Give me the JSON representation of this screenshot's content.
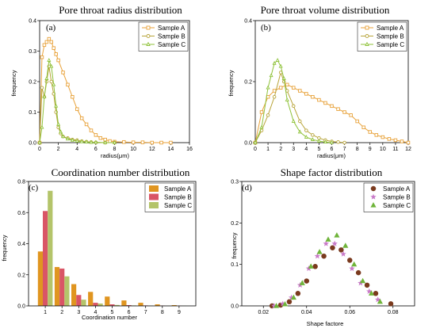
{
  "chart_data": [
    {
      "id": "a",
      "type": "line",
      "letter": "(a)",
      "title": "Pore throat radius distribution",
      "xlabel": "radius(μm)",
      "ylabel": "frequency",
      "xlim": [
        0,
        16
      ],
      "ylim": [
        0,
        0.4
      ],
      "xticks": [
        0,
        2,
        4,
        6,
        8,
        10,
        12,
        14,
        16
      ],
      "yticks": [
        0.0,
        0.1,
        0.2,
        0.3,
        0.4
      ],
      "legend": "top-right",
      "series": [
        {
          "name": "Sample A",
          "color": "#e8a23a",
          "marker": "square",
          "x": [
            0,
            0.25,
            0.5,
            0.75,
            1.0,
            1.25,
            1.5,
            1.75,
            2.0,
            2.5,
            3.0,
            3.5,
            4.0,
            4.5,
            5.0,
            5.5,
            6.0,
            6.5,
            7.0,
            7.5,
            8.0,
            9.0,
            10.0,
            11.0,
            12.0,
            13.0,
            14.0
          ],
          "y": [
            0.0,
            0.28,
            0.32,
            0.33,
            0.34,
            0.33,
            0.31,
            0.29,
            0.27,
            0.23,
            0.19,
            0.15,
            0.11,
            0.08,
            0.06,
            0.04,
            0.025,
            0.015,
            0.01,
            0.005,
            0.003,
            0.002,
            0.001,
            0.001,
            0.0,
            0.0,
            0.0
          ]
        },
        {
          "name": "Sample B",
          "color": "#b8a43a",
          "marker": "circle",
          "x": [
            0,
            0.25,
            0.5,
            0.75,
            1.0,
            1.25,
            1.5,
            1.75,
            2.0,
            2.25,
            2.5,
            3.0,
            3.5,
            4.0,
            4.5,
            5.0,
            5.5,
            6.0,
            7.0,
            8.0
          ],
          "y": [
            0.0,
            0.18,
            0.15,
            0.2,
            0.25,
            0.2,
            0.16,
            0.1,
            0.05,
            0.03,
            0.02,
            0.015,
            0.01,
            0.008,
            0.005,
            0.003,
            0.002,
            0.001,
            0.0,
            0.0
          ]
        },
        {
          "name": "Sample C",
          "color": "#8fc23a",
          "marker": "triangle",
          "x": [
            0,
            0.25,
            0.5,
            0.75,
            1.0,
            1.25,
            1.5,
            1.75,
            2.0,
            2.25,
            2.5,
            3.0,
            3.5,
            4.0,
            4.5,
            5.0,
            5.5,
            6.0,
            7.0,
            8.0
          ],
          "y": [
            0.0,
            0.05,
            0.15,
            0.21,
            0.27,
            0.25,
            0.19,
            0.12,
            0.06,
            0.035,
            0.02,
            0.012,
            0.008,
            0.005,
            0.003,
            0.002,
            0.001,
            0.001,
            0.0,
            0.0
          ]
        }
      ]
    },
    {
      "id": "b",
      "type": "line",
      "letter": "(b)",
      "title": "Pore throat volume distribution",
      "xlabel": "radius(μm)",
      "ylabel": "frequency",
      "xlim": [
        0,
        12
      ],
      "ylim": [
        0,
        0.4
      ],
      "xticks": [
        0,
        1,
        2,
        3,
        4,
        5,
        6,
        7,
        8,
        9,
        10,
        11,
        12
      ],
      "yticks": [
        0.0,
        0.2,
        0.4
      ],
      "legend": "top-right",
      "series": [
        {
          "name": "Sample A",
          "color": "#e8a23a",
          "marker": "square",
          "x": [
            0,
            0.5,
            1.0,
            1.5,
            2.0,
            2.5,
            3.0,
            3.5,
            4.0,
            4.5,
            5.0,
            5.5,
            6.0,
            6.5,
            7.0,
            7.5,
            8.0,
            8.5,
            9.0,
            9.5,
            10.0,
            10.5,
            11.0,
            11.5,
            12.0
          ],
          "y": [
            0.0,
            0.1,
            0.15,
            0.17,
            0.18,
            0.19,
            0.18,
            0.17,
            0.16,
            0.15,
            0.14,
            0.13,
            0.12,
            0.11,
            0.1,
            0.09,
            0.07,
            0.05,
            0.035,
            0.025,
            0.018,
            0.012,
            0.008,
            0.004,
            0.0
          ]
        },
        {
          "name": "Sample B",
          "color": "#b8a43a",
          "marker": "circle",
          "x": [
            0,
            0.5,
            1.0,
            1.5,
            2.0,
            2.25,
            2.5,
            3.0,
            3.5,
            4.0,
            4.5,
            5.0,
            5.5,
            6.0,
            6.5,
            7.0
          ],
          "y": [
            0.0,
            0.04,
            0.09,
            0.15,
            0.23,
            0.2,
            0.17,
            0.12,
            0.07,
            0.04,
            0.025,
            0.015,
            0.008,
            0.004,
            0.002,
            0.0
          ]
        },
        {
          "name": "Sample C",
          "color": "#8fc23a",
          "marker": "triangle",
          "x": [
            0,
            0.5,
            1.0,
            1.25,
            1.5,
            1.75,
            2.0,
            2.25,
            2.5,
            3.0,
            3.5,
            4.0,
            4.5,
            5.0,
            5.5,
            6.0
          ],
          "y": [
            0.0,
            0.05,
            0.18,
            0.22,
            0.26,
            0.27,
            0.25,
            0.21,
            0.14,
            0.07,
            0.035,
            0.018,
            0.01,
            0.005,
            0.002,
            0.0
          ]
        }
      ]
    },
    {
      "id": "c",
      "type": "bar",
      "letter": "(c)",
      "title": "Coordination number distribution",
      "xlabel": "Coordination number",
      "ylabel": "frequency",
      "xlim": [
        0,
        10
      ],
      "ylim": [
        0,
        0.8
      ],
      "xticks": [
        1,
        2,
        3,
        4,
        5,
        6,
        7,
        8,
        9
      ],
      "yticks": [
        0.0,
        0.2,
        0.4,
        0.6,
        0.8
      ],
      "legend": "top-right",
      "categories": [
        1,
        2,
        3,
        4,
        5,
        6,
        7,
        8,
        9
      ],
      "series": [
        {
          "name": "Sample A",
          "color": "#e09520",
          "values": [
            0.35,
            0.25,
            0.14,
            0.09,
            0.06,
            0.035,
            0.02,
            0.01,
            0.005
          ]
        },
        {
          "name": "Sample B",
          "color": "#d95566",
          "values": [
            0.61,
            0.24,
            0.07,
            0.02,
            0.01,
            0.005,
            0.003,
            0.002,
            0.001
          ]
        },
        {
          "name": "Sample C",
          "color": "#b4c46a",
          "values": [
            0.74,
            0.19,
            0.04,
            0.015,
            0.006,
            0.003,
            0.002,
            0.001,
            0.001
          ]
        }
      ]
    },
    {
      "id": "d",
      "type": "scatter",
      "letter": "(d)",
      "title": "Shape factor distribution",
      "xlabel": "Shape factore",
      "ylabel": "frequency",
      "xlim": [
        0.01,
        0.09
      ],
      "ylim": [
        0,
        0.3
      ],
      "xticks": [
        0.02,
        0.04,
        0.06,
        0.08
      ],
      "yticks": [
        0.0,
        0.1,
        0.2,
        0.3
      ],
      "legend": "top-right",
      "series": [
        {
          "name": "Sample A",
          "color": "#7a3a1e",
          "marker": "circle",
          "x": [
            0.024,
            0.028,
            0.032,
            0.036,
            0.04,
            0.044,
            0.048,
            0.052,
            0.056,
            0.06,
            0.064,
            0.068,
            0.072,
            0.079
          ],
          "y": [
            0.0,
            0.002,
            0.01,
            0.03,
            0.06,
            0.095,
            0.12,
            0.14,
            0.135,
            0.11,
            0.08,
            0.05,
            0.03,
            0.005
          ]
        },
        {
          "name": "Sample B",
          "color": "#c87ac8",
          "marker": "star",
          "x": [
            0.025,
            0.029,
            0.033,
            0.037,
            0.041,
            0.045,
            0.049,
            0.053,
            0.057,
            0.061,
            0.065,
            0.069,
            0.073
          ],
          "y": [
            0.0,
            0.005,
            0.02,
            0.05,
            0.09,
            0.12,
            0.15,
            0.15,
            0.125,
            0.09,
            0.055,
            0.035,
            0.015
          ]
        },
        {
          "name": "Sample C",
          "color": "#6fb43a",
          "marker": "triangle",
          "x": [
            0.026,
            0.03,
            0.034,
            0.038,
            0.042,
            0.046,
            0.05,
            0.054,
            0.058,
            0.062,
            0.066,
            0.07,
            0.074
          ],
          "y": [
            0.0,
            0.004,
            0.02,
            0.055,
            0.095,
            0.13,
            0.16,
            0.17,
            0.145,
            0.1,
            0.06,
            0.03,
            0.01
          ]
        }
      ]
    }
  ]
}
